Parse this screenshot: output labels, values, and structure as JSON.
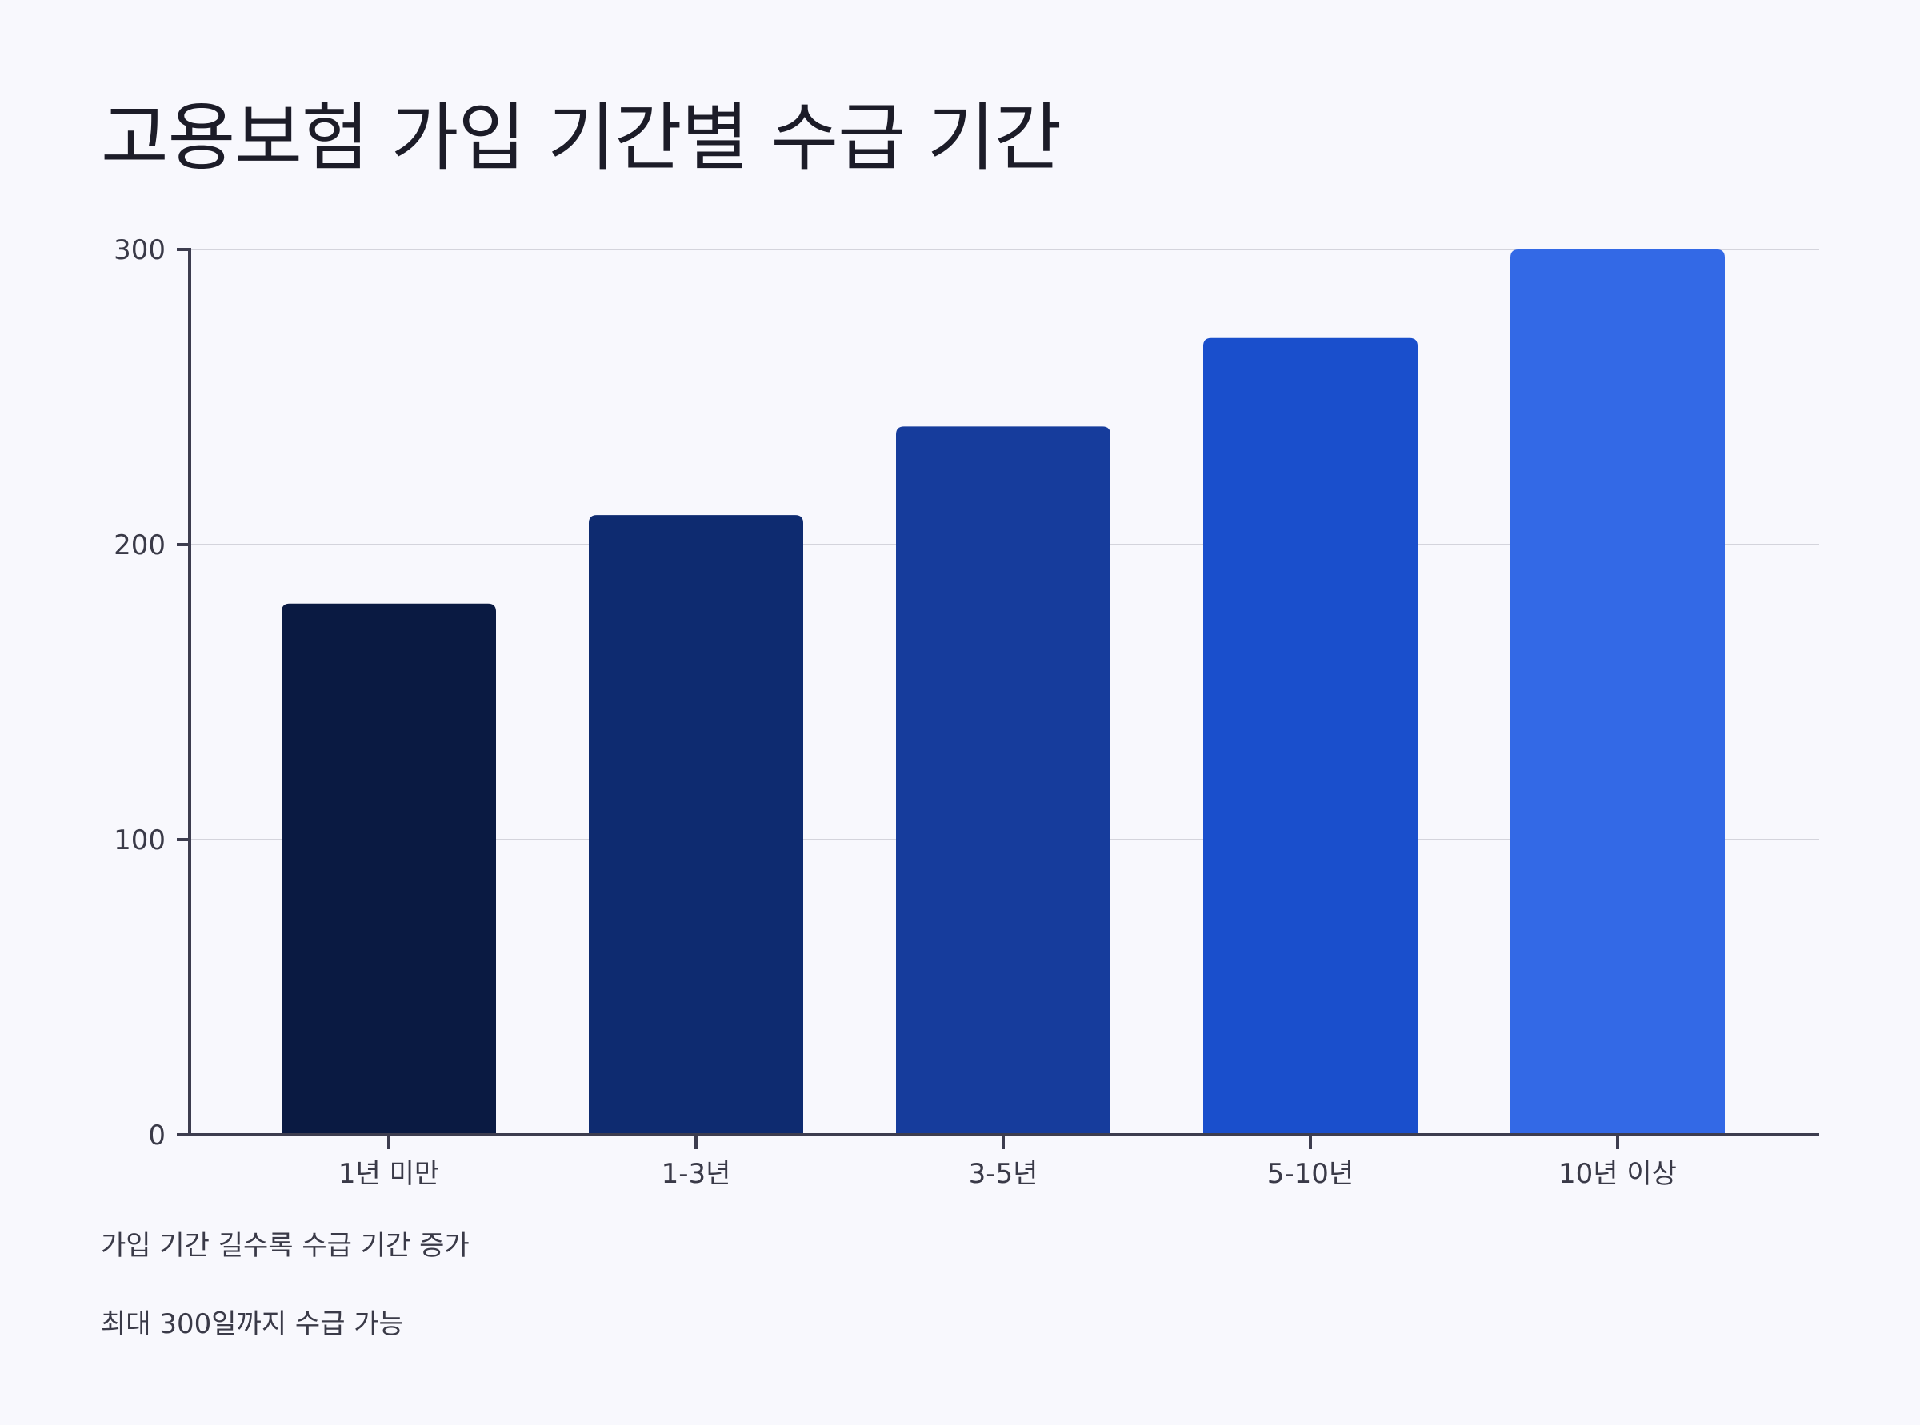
{
  "chart_data": {
    "type": "bar",
    "title": "고용보험 가입 기간별 수급 기간",
    "xlabel": "",
    "ylabel": "",
    "categories": [
      "1년 미만",
      "1-3년",
      "3-5년",
      "5-10년",
      "10년 이상"
    ],
    "values": [
      180,
      210,
      240,
      270,
      300
    ],
    "colors": [
      "#0a1a42",
      "#0e2b70",
      "#163c9c",
      "#1a4fcc",
      "#3369e6"
    ],
    "ylim": [
      0,
      300
    ],
    "yticks": [
      0,
      100,
      200,
      300
    ],
    "grid": true,
    "legend": "none"
  },
  "notes": [
    "가입 기간 길수록 수급 기간 증가",
    "최대 300일까지 수급 가능"
  ],
  "colors": {
    "background": "#f8f8fd",
    "axis": "#3d3d4f",
    "grid": "#d4d4dc",
    "text": "#1c1c28"
  }
}
